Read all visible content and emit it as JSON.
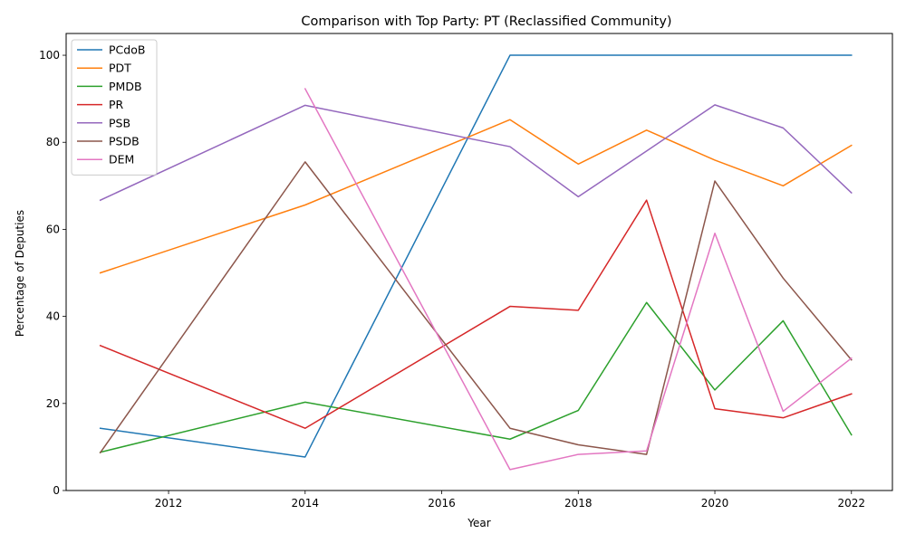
{
  "chart_data": {
    "type": "line",
    "title": "Comparison with Top Party: PT (Reclassified Community)",
    "xlabel": "Year",
    "ylabel": "Percentage of Deputies",
    "xlim": [
      2010.5,
      2022.6
    ],
    "ylim": [
      0,
      105
    ],
    "xticks": [
      2012,
      2014,
      2016,
      2018,
      2020,
      2022
    ],
    "yticks": [
      0,
      20,
      40,
      60,
      80,
      100
    ],
    "grid": false,
    "legend_position": "top-left",
    "series": [
      {
        "name": "PCdoB",
        "color": "#1f77b4",
        "points": [
          [
            2011,
            14.3
          ],
          [
            2014,
            7.7
          ],
          [
            2017,
            100
          ],
          [
            2018,
            100
          ],
          [
            2019,
            100
          ],
          [
            2020,
            100
          ],
          [
            2021,
            100
          ],
          [
            2022,
            100
          ]
        ]
      },
      {
        "name": "PDT",
        "color": "#ff7f0e",
        "points": [
          [
            2011,
            50.0
          ],
          [
            2014,
            65.6
          ],
          [
            2017,
            85.2
          ],
          [
            2018,
            75.0
          ],
          [
            2019,
            82.8
          ],
          [
            2020,
            75.9
          ],
          [
            2021,
            70.0
          ],
          [
            2022,
            79.3
          ]
        ]
      },
      {
        "name": "PMDB",
        "color": "#2ca02c",
        "points": [
          [
            2011,
            8.8
          ],
          [
            2014,
            20.3
          ],
          [
            2017,
            11.8
          ],
          [
            2018,
            18.4
          ],
          [
            2019,
            43.2
          ],
          [
            2020,
            23.1
          ],
          [
            2021,
            39.0
          ],
          [
            2022,
            12.8
          ]
        ]
      },
      {
        "name": "PR",
        "color": "#d62728",
        "points": [
          [
            2011,
            33.3
          ],
          [
            2014,
            14.3
          ],
          [
            2017,
            42.3
          ],
          [
            2018,
            41.4
          ],
          [
            2019,
            66.7
          ],
          [
            2020,
            18.8
          ],
          [
            2021,
            16.7
          ],
          [
            2022,
            22.2
          ]
        ]
      },
      {
        "name": "PSB",
        "color": "#9467bd",
        "points": [
          [
            2011,
            66.7
          ],
          [
            2014,
            88.5
          ],
          [
            2017,
            79.0
          ],
          [
            2018,
            67.5
          ],
          [
            2019,
            78.0
          ],
          [
            2020,
            88.6
          ],
          [
            2021,
            83.3
          ],
          [
            2022,
            68.4
          ]
        ]
      },
      {
        "name": "PSDB",
        "color": "#8c564b",
        "points": [
          [
            2011,
            8.7
          ],
          [
            2014,
            75.5
          ],
          [
            2017,
            14.3
          ],
          [
            2018,
            10.5
          ],
          [
            2019,
            8.3
          ],
          [
            2020,
            71.1
          ],
          [
            2021,
            48.8
          ],
          [
            2022,
            30.0
          ]
        ]
      },
      {
        "name": "DEM",
        "color": "#e377c2",
        "points": [
          [
            2014,
            92.3
          ],
          [
            2017,
            4.8
          ],
          [
            2018,
            8.3
          ],
          [
            2019,
            9.1
          ],
          [
            2020,
            59.1
          ],
          [
            2021,
            18.2
          ],
          [
            2022,
            30.4
          ]
        ]
      }
    ]
  }
}
